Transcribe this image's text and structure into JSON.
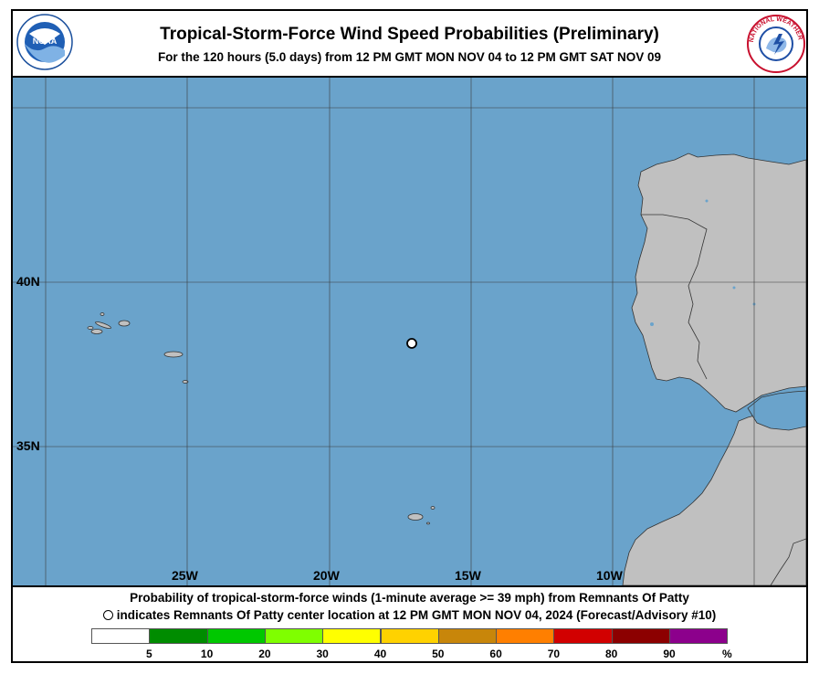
{
  "header": {
    "title": "Tropical-Storm-Force Wind Speed Probabilities (Preliminary)",
    "subtitle": "For the 120 hours (5.0 days) from 12 PM GMT MON NOV 04 to 12 PM GMT SAT NOV 09"
  },
  "logos": {
    "left_icon": "noaa-logo-icon",
    "left_text": "NOAA",
    "right_icon": "national-weather-service-logo-icon",
    "right_text": "NATIONAL WEATHER SERVICE"
  },
  "map": {
    "ocean_color": "#6aa3cb",
    "land_color": "#c0c0c0",
    "lat_labels": [
      "40N",
      "35N"
    ],
    "lon_labels": [
      "25W",
      "20W",
      "15W",
      "10W"
    ],
    "center_marker": "storm-center-marker"
  },
  "footer": {
    "line1": "Probability of tropical-storm-force winds (1-minute average >= 39 mph) from Remnants Of Patty",
    "line2": "indicates Remnants Of Patty center location at 12 PM GMT MON NOV 04, 2024 (Forecast/Advisory #10)"
  },
  "legend": {
    "colors": [
      "#ffffff",
      "#008c00",
      "#00c800",
      "#7fff00",
      "#ffff00",
      "#ffd200",
      "#c8860a",
      "#ff7f00",
      "#d20000",
      "#8c0000",
      "#8c008c"
    ],
    "labels": [
      "5",
      "10",
      "20",
      "30",
      "40",
      "50",
      "60",
      "70",
      "80",
      "90",
      "%"
    ]
  }
}
